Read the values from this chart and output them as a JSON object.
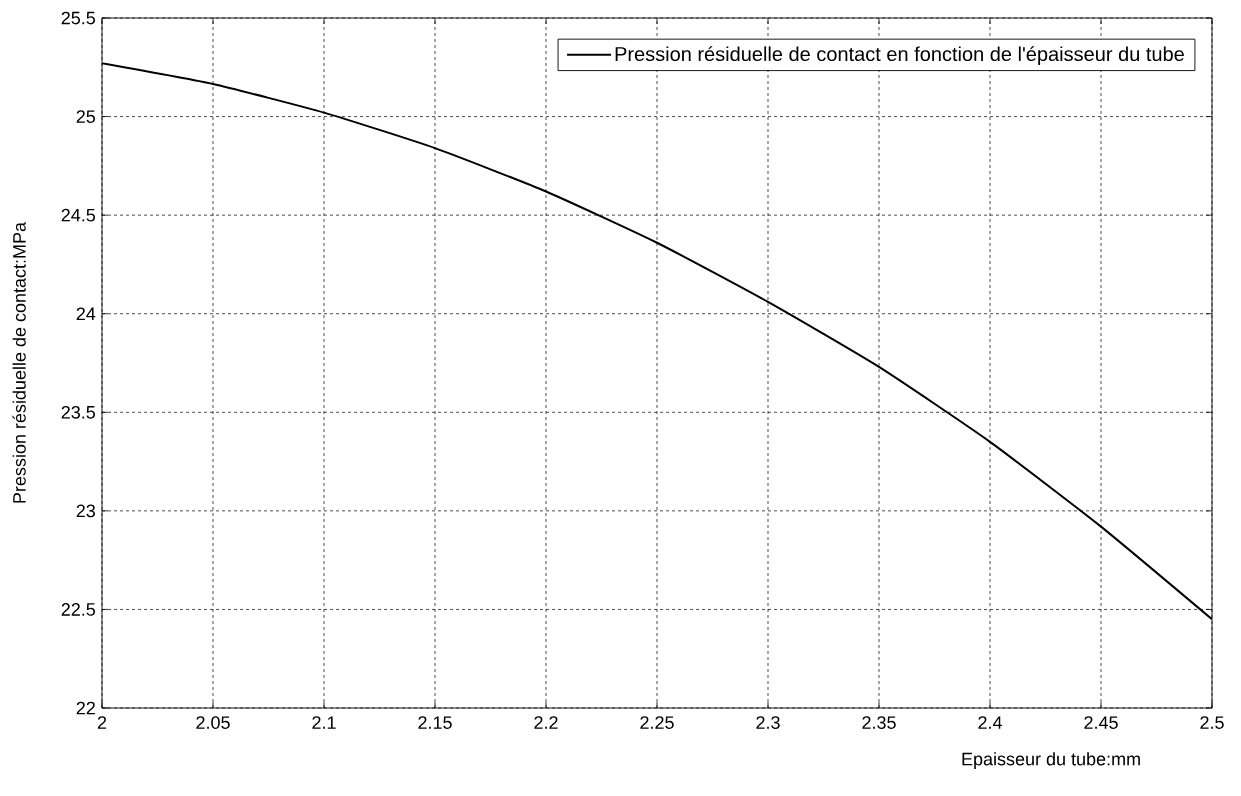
{
  "chart_data": {
    "type": "line",
    "xlabel": "Epaisseur du tube:mm",
    "ylabel": "Pression résiduelle de contact:MPa",
    "x": [
      2.0,
      2.05,
      2.1,
      2.15,
      2.2,
      2.25,
      2.3,
      2.35,
      2.4,
      2.45,
      2.5
    ],
    "series": [
      {
        "name": "Pression résiduelle de contact en fonction de l'épaisseur du tube",
        "color": "#000000",
        "values": [
          25.27,
          25.165,
          25.02,
          24.84,
          24.62,
          24.36,
          24.06,
          23.73,
          23.35,
          22.92,
          22.45
        ]
      }
    ],
    "xlim": [
      2,
      2.5
    ],
    "ylim": [
      22,
      25.5
    ],
    "xticks": [
      2,
      2.05,
      2.1,
      2.15,
      2.2,
      2.25,
      2.3,
      2.35,
      2.4,
      2.45,
      2.5
    ],
    "yticks": [
      22,
      22.5,
      23,
      23.5,
      24,
      24.5,
      25,
      25.5
    ],
    "grid": true,
    "legend": "top right",
    "line_style": "solid",
    "marker": "none"
  }
}
